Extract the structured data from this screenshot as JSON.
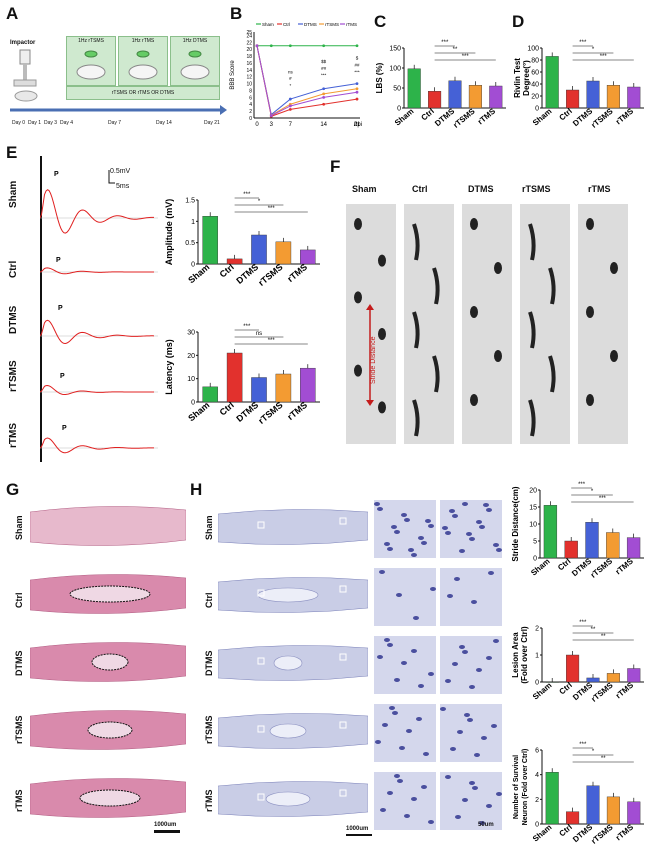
{
  "panels": {
    "A": "A",
    "B": "B",
    "C": "C",
    "D": "D",
    "E": "E",
    "F": "F",
    "G": "G",
    "H": "H"
  },
  "panelA": {
    "impactor": "Impactor",
    "box_labels": [
      "1Hz rTSMS",
      "1Hz rTMS",
      "1Hz DTMS"
    ],
    "bar_text": "rTSMS OR rTMS OR DTMS",
    "days": [
      "Day 0",
      "Day 1",
      "Day 3",
      "Day 4",
      "Day 7",
      "Day 14",
      "Day 21"
    ]
  },
  "colors": {
    "sham": "#2db34a",
    "ctrl": "#e2312d",
    "dtms": "#4561d6",
    "rtsms": "#f39b32",
    "rtms": "#a24dd3"
  },
  "groups": [
    "Sham",
    "Ctrl",
    "DTMS",
    "rTSMS",
    "rTMS"
  ],
  "chart_data": [
    {
      "id": "B",
      "type": "line",
      "ylabel": "BBB Score",
      "xlabel": "dpi",
      "x": [
        0,
        3,
        7,
        14,
        21
      ],
      "ylim": [
        0,
        25
      ],
      "yticks": [
        0,
        2,
        4,
        6,
        8,
        10,
        12,
        14,
        16,
        18,
        20,
        22,
        24,
        25
      ],
      "legend": [
        "Sham",
        "Ctrl",
        "DTMS",
        "rTSMS",
        "rTMS"
      ],
      "series": [
        {
          "name": "Sham",
          "values": [
            21,
            21,
            21,
            21,
            21
          ]
        },
        {
          "name": "Ctrl",
          "values": [
            21,
            0.5,
            2.5,
            4,
            5.5
          ]
        },
        {
          "name": "DTMS",
          "values": [
            21,
            1,
            5.5,
            8.5,
            10
          ]
        },
        {
          "name": "rTSMS",
          "values": [
            21,
            0.8,
            4,
            7,
            8.5
          ]
        },
        {
          "name": "rTMS",
          "values": [
            21,
            0.7,
            3.5,
            6,
            7.5
          ]
        }
      ],
      "annotations": [
        "ns",
        "#",
        "*",
        "$$",
        "##",
        "***",
        "$",
        "##",
        "***"
      ]
    },
    {
      "id": "C",
      "type": "bar",
      "ylabel": "LBS (%)",
      "categories": [
        "Sham",
        "Ctrl",
        "DTMS",
        "rTSMS",
        "rTMS"
      ],
      "values": [
        98,
        42,
        68,
        57,
        55
      ],
      "ylim": [
        0,
        150
      ],
      "yticks": [
        0,
        50,
        100,
        150
      ],
      "sig": [
        "***",
        "**",
        "***"
      ]
    },
    {
      "id": "D",
      "type": "bar",
      "ylabel": "Rivlin Test Degree(°)",
      "categories": [
        "Sham",
        "Ctrl",
        "DTMS",
        "rTSMS",
        "rTMS"
      ],
      "values": [
        86,
        30,
        45,
        38,
        35
      ],
      "ylim": [
        0,
        100
      ],
      "yticks": [
        0,
        20,
        40,
        60,
        80,
        100
      ],
      "sig": [
        "***",
        "*",
        "***"
      ]
    },
    {
      "id": "E1",
      "type": "bar",
      "ylabel": "Amplitude (mV)",
      "categories": [
        "Sham",
        "Ctrl",
        "DTMS",
        "rTSMS",
        "rTMS"
      ],
      "values": [
        1.12,
        0.12,
        0.68,
        0.52,
        0.33
      ],
      "ylim": [
        0,
        1.5
      ],
      "yticks": [
        0.0,
        0.5,
        1.0,
        1.5
      ],
      "sig": [
        "***",
        "*",
        "***"
      ]
    },
    {
      "id": "E2",
      "type": "bar",
      "ylabel": "Latency (ms)",
      "categories": [
        "Sham",
        "Ctrl",
        "DTMS",
        "rTSMS",
        "rTMS"
      ],
      "values": [
        6.5,
        21,
        10.5,
        12,
        14.5
      ],
      "ylim": [
        0,
        30
      ],
      "yticks": [
        0,
        10,
        20,
        30
      ],
      "sig": [
        "***",
        "ns",
        "***"
      ]
    },
    {
      "id": "H1",
      "type": "bar",
      "ylabel": "Stride Distance(cm)",
      "categories": [
        "Sham",
        "Ctrl",
        "DTMS",
        "rTSMS",
        "rTMS"
      ],
      "values": [
        15.5,
        5,
        10.5,
        7.5,
        6
      ],
      "ylim": [
        0,
        20
      ],
      "yticks": [
        0,
        5,
        10,
        15,
        20
      ],
      "sig": [
        "***",
        "*",
        "***"
      ]
    },
    {
      "id": "H2",
      "type": "bar",
      "ylabel": "Lesion Area (Fold over Ctrl)",
      "categories": [
        "Sham",
        "Ctrl",
        "DTMS",
        "rTSMS",
        "rTMS"
      ],
      "values": [
        0,
        1,
        0.15,
        0.32,
        0.5
      ],
      "ylim": [
        0,
        2
      ],
      "yticks": [
        0,
        1,
        2
      ],
      "sig": [
        "***",
        "**",
        "**"
      ]
    },
    {
      "id": "H3",
      "type": "bar",
      "ylabel": "Number of Survival Neuron (Fold over Ctrl)",
      "categories": [
        "Sham",
        "Ctrl",
        "DTMS",
        "rTSMS",
        "rTMS"
      ],
      "values": [
        4.2,
        1,
        3.1,
        2.2,
        1.8
      ],
      "ylim": [
        0,
        6
      ],
      "yticks": [
        0,
        2,
        4,
        6
      ],
      "sig": [
        "***",
        "*",
        "**"
      ]
    }
  ],
  "panelE": {
    "traces": [
      "Sham",
      "Ctrl",
      "DTMS",
      "rTSMS",
      "rTMS"
    ],
    "peak": "P",
    "scale_v": "0.5mV",
    "scale_t": "5ms"
  },
  "panelF": {
    "cols": [
      "Sham",
      "Ctrl",
      "DTMS",
      "rTSMS",
      "rTMS"
    ],
    "stride": "Stride Distance"
  },
  "panelG": {
    "rows": [
      "Sham",
      "Ctrl",
      "DTMS",
      "rTSMS",
      "rTMS"
    ],
    "scale": "1000um"
  },
  "panelH": {
    "rows": [
      "Sham",
      "Ctrl",
      "DTMS",
      "rTSMS",
      "rTMS"
    ],
    "scale": "1000um",
    "scale2": "50um"
  }
}
